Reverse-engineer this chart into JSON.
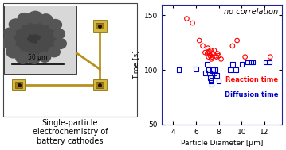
{
  "reaction_time_x": [
    5.2,
    5.7,
    6.3,
    6.6,
    6.8,
    7.0,
    7.05,
    7.1,
    7.15,
    7.2,
    7.25,
    7.3,
    7.35,
    7.4,
    7.5,
    7.6,
    7.7,
    7.8,
    7.9,
    8.0,
    8.2,
    9.2,
    9.6,
    10.3,
    12.5
  ],
  "reaction_time_y": [
    147,
    143,
    127,
    122,
    116,
    115,
    120,
    112,
    117,
    115,
    113,
    118,
    110,
    112,
    115,
    118,
    113,
    112,
    115,
    113,
    110,
    122,
    127,
    112,
    112
  ],
  "diffusion_time_x": [
    4.5,
    6.0,
    6.8,
    7.0,
    7.1,
    7.2,
    7.25,
    7.3,
    7.35,
    7.4,
    7.5,
    7.6,
    7.7,
    7.8,
    8.0,
    9.0,
    9.2,
    9.5,
    10.0,
    10.5,
    10.8,
    11.0,
    12.1,
    12.4
  ],
  "diffusion_time_y": [
    100,
    101,
    97,
    105,
    100,
    97,
    93,
    90,
    87,
    95,
    100,
    97,
    100,
    95,
    90,
    100,
    105,
    100,
    105,
    107,
    107,
    107,
    107,
    107
  ],
  "title_annotation": "no correlation",
  "xlabel": "Particle Diameter [μm]",
  "ylabel": "Time [s]",
  "xlim": [
    3,
    13.5
  ],
  "ylim": [
    50,
    160
  ],
  "xticks": [
    4,
    6,
    8,
    10,
    12
  ],
  "yticks": [
    50,
    100,
    150
  ],
  "reaction_color": "#ff0000",
  "diffusion_color": "#0000cc",
  "bg_color": "#c8a050",
  "sem_bg": "#b0b0b0",
  "pad_face": "#d4b840",
  "pad_edge": "#8a7010",
  "pad_dot": "#111111",
  "trace_color": "#b89020",
  "scale_bar_text": "50 μm",
  "caption": "Single-particle\nelectrochemistry of\nbattery cathodes",
  "legend_reaction": "Reaction time",
  "legend_diffusion": "Diffusion time"
}
